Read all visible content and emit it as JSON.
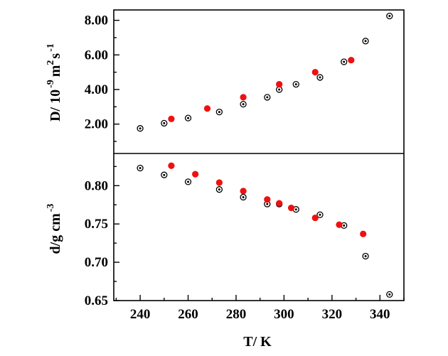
{
  "chart_data": [
    {
      "type": "scatter",
      "panel": "top",
      "ylabel": {
        "main": "D/ 10",
        "exp1": "-9",
        "unit": "m",
        "exp2": "2",
        "unit2": "s",
        "exp3": "-1"
      },
      "ylim": [
        0.3,
        8.6
      ],
      "yticks": [
        "2.00",
        "4.00",
        "6.00",
        "8.00"
      ],
      "ytick_values": [
        2.0,
        4.0,
        6.0,
        8.0
      ],
      "series": [
        {
          "marker": "open-dot",
          "color": "#000000",
          "x": [
            240,
            250,
            260,
            273,
            283,
            293,
            298,
            305,
            315,
            325,
            334,
            344
          ],
          "y": [
            1.75,
            2.05,
            2.35,
            2.7,
            3.15,
            3.55,
            4.0,
            4.3,
            4.7,
            5.6,
            6.8,
            8.25
          ]
        },
        {
          "marker": "filled",
          "color": "#ee1111",
          "x": [
            253,
            268,
            283,
            298,
            313,
            328
          ],
          "y": [
            2.3,
            2.9,
            3.55,
            4.3,
            5.0,
            5.7
          ]
        }
      ]
    },
    {
      "type": "scatter",
      "panel": "bottom",
      "xlabel": "T/ K",
      "ylabel": {
        "main": "d/g cm",
        "exp1": "-3"
      },
      "xlim": [
        229,
        350
      ],
      "xticks": [
        "240",
        "260",
        "280",
        "300",
        "320",
        "340"
      ],
      "xtick_values": [
        240,
        260,
        280,
        300,
        320,
        340
      ],
      "ylim": [
        0.65,
        0.842
      ],
      "yticks": [
        "0.65",
        "0.70",
        "0.75",
        "0.80"
      ],
      "ytick_values": [
        0.65,
        0.7,
        0.75,
        0.8
      ],
      "series": [
        {
          "marker": "open-dot",
          "color": "#000000",
          "x": [
            240,
            250,
            260,
            273,
            283,
            293,
            298,
            305,
            315,
            325,
            334,
            344
          ],
          "y": [
            0.823,
            0.814,
            0.805,
            0.795,
            0.785,
            0.776,
            0.776,
            0.769,
            0.762,
            0.748,
            0.708,
            0.658
          ]
        },
        {
          "marker": "filled",
          "color": "#ee1111",
          "x": [
            253,
            263,
            273,
            283,
            293,
            298,
            303,
            313,
            323,
            333
          ],
          "y": [
            0.826,
            0.815,
            0.804,
            0.793,
            0.782,
            0.777,
            0.771,
            0.758,
            0.749,
            0.737
          ]
        }
      ]
    }
  ]
}
